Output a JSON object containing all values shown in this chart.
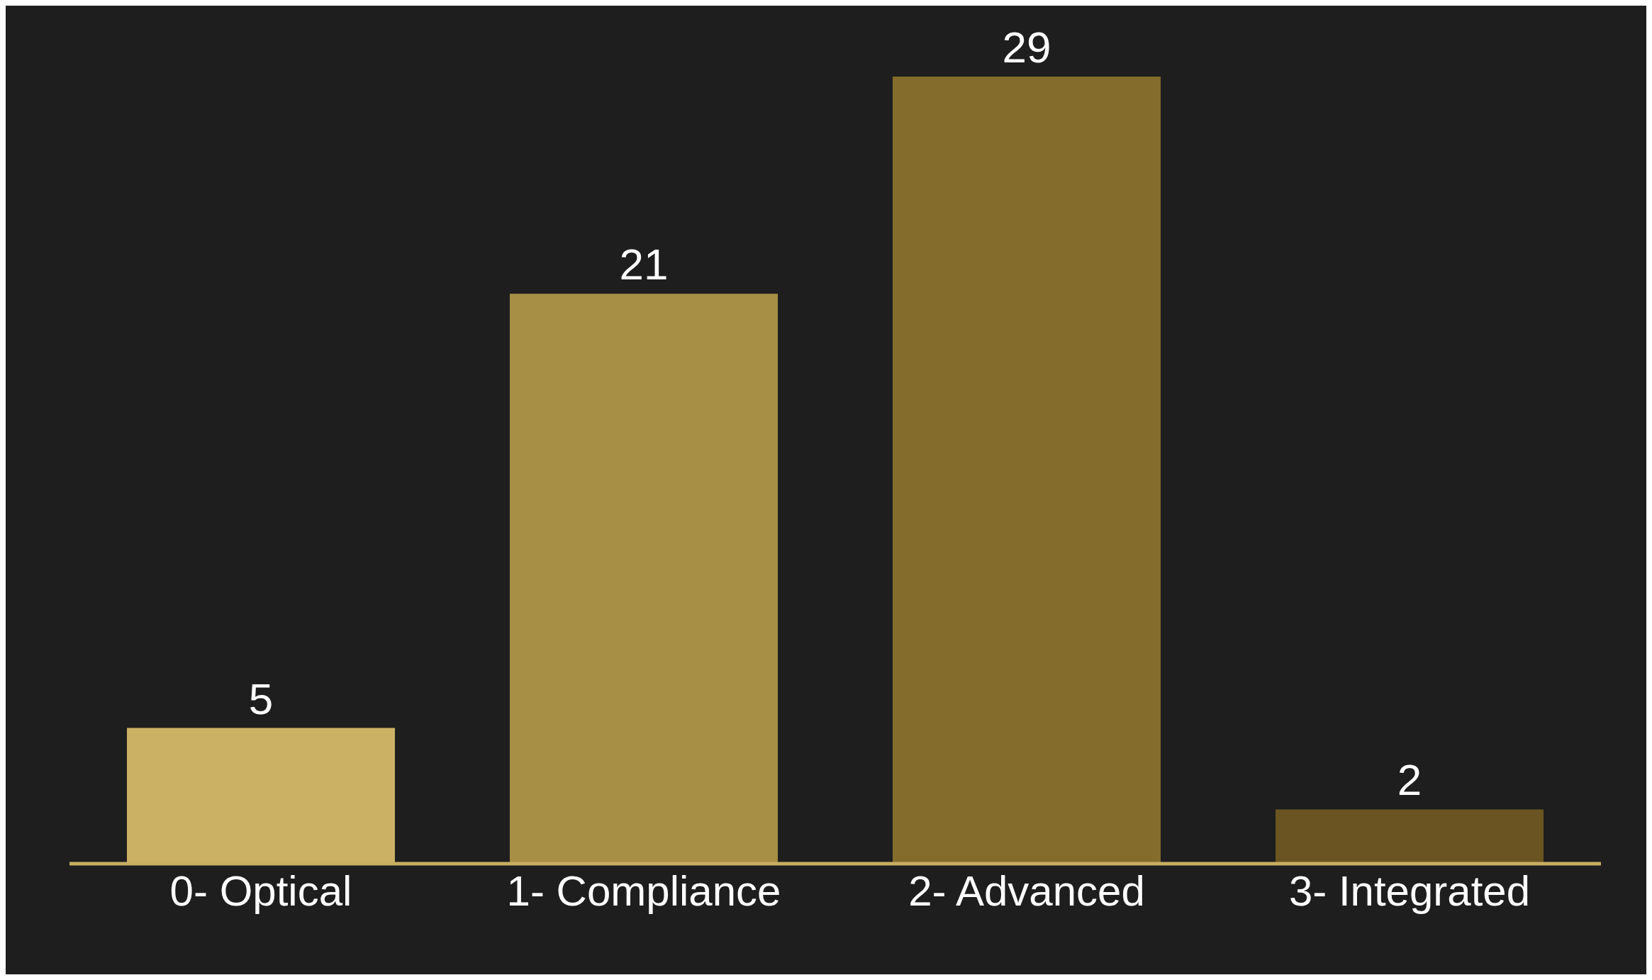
{
  "chart_data": {
    "type": "bar",
    "categories": [
      "0- Optical",
      "1- Compliance",
      "2- Advanced",
      "3- Integrated"
    ],
    "values": [
      5,
      21,
      29,
      2
    ],
    "colors": [
      "#cbb164",
      "#a78f45",
      "#836c2c",
      "#6a5522"
    ],
    "data_labels": true
  }
}
